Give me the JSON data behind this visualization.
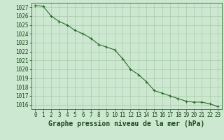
{
  "x": [
    0,
    1,
    2,
    3,
    4,
    5,
    6,
    7,
    8,
    9,
    10,
    11,
    12,
    13,
    14,
    15,
    16,
    17,
    18,
    19,
    20,
    21,
    22,
    23
  ],
  "y": [
    1027.2,
    1027.1,
    1026.0,
    1025.4,
    1025.0,
    1024.4,
    1024.0,
    1023.5,
    1022.8,
    1022.5,
    1022.2,
    1021.2,
    1020.0,
    1019.4,
    1018.6,
    1017.6,
    1017.3,
    1017.0,
    1016.7,
    1016.4,
    1016.3,
    1016.3,
    1016.1,
    1015.8
  ],
  "line_color": "#2d6a2d",
  "marker": "+",
  "marker_size": 3,
  "bg_color": "#cde8d0",
  "grid_color": "#a8cca8",
  "title": "Graphe pression niveau de la mer (hPa)",
  "ylim_min": 1015.5,
  "ylim_max": 1027.5,
  "title_fontsize": 7,
  "tick_fontsize": 5.5,
  "tick_color": "#1a4a1a",
  "line_width": 0.8,
  "marker_edge_width": 0.8
}
